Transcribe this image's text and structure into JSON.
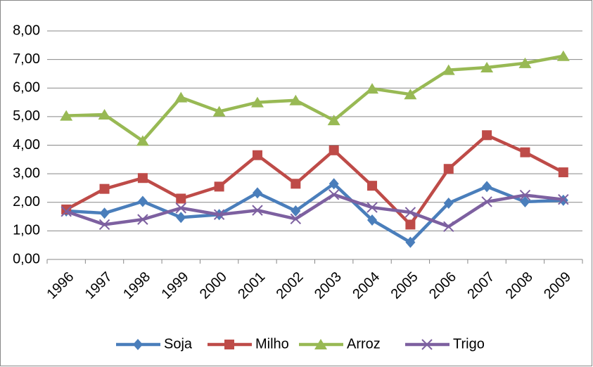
{
  "chart_data": {
    "type": "line",
    "categories": [
      "1996",
      "1997",
      "1998",
      "1999",
      "2000",
      "2001",
      "2002",
      "2003",
      "2004",
      "2005",
      "2006",
      "2007",
      "2008",
      "2009"
    ],
    "series": [
      {
        "name": "Soja",
        "color": "#4a7ebb",
        "marker": "diamond",
        "values": [
          1.7,
          1.62,
          2.03,
          1.47,
          1.57,
          2.33,
          1.7,
          2.65,
          1.38,
          0.6,
          1.97,
          2.55,
          2.02,
          2.07
        ]
      },
      {
        "name": "Milho",
        "color": "#be4b48",
        "marker": "square",
        "values": [
          1.75,
          2.47,
          2.85,
          2.13,
          2.55,
          3.65,
          2.65,
          3.82,
          2.58,
          1.22,
          3.17,
          4.35,
          3.75,
          3.05
        ]
      },
      {
        "name": "Arroz",
        "color": "#98b954",
        "marker": "triangle",
        "values": [
          5.03,
          5.07,
          4.15,
          5.67,
          5.18,
          5.5,
          5.57,
          4.87,
          5.98,
          5.78,
          6.63,
          6.72,
          6.87,
          7.12
        ]
      },
      {
        "name": "Trigo",
        "color": "#7d60a0",
        "marker": "x",
        "values": [
          1.68,
          1.22,
          1.4,
          1.8,
          1.57,
          1.72,
          1.42,
          2.27,
          1.82,
          1.65,
          1.15,
          2.02,
          2.25,
          2.1
        ]
      }
    ],
    "ylim": [
      0,
      8
    ],
    "yticks": [
      {
        "value": 0,
        "label": "0,00"
      },
      {
        "value": 1,
        "label": "1,00"
      },
      {
        "value": 2,
        "label": "2,00"
      },
      {
        "value": 3,
        "label": "3,00"
      },
      {
        "value": 4,
        "label": "4,00"
      },
      {
        "value": 5,
        "label": "5,00"
      },
      {
        "value": 6,
        "label": "6,00"
      },
      {
        "value": 7,
        "label": "7,00"
      },
      {
        "value": 8,
        "label": "8,00"
      }
    ],
    "grid": true,
    "legend": "bottom"
  }
}
